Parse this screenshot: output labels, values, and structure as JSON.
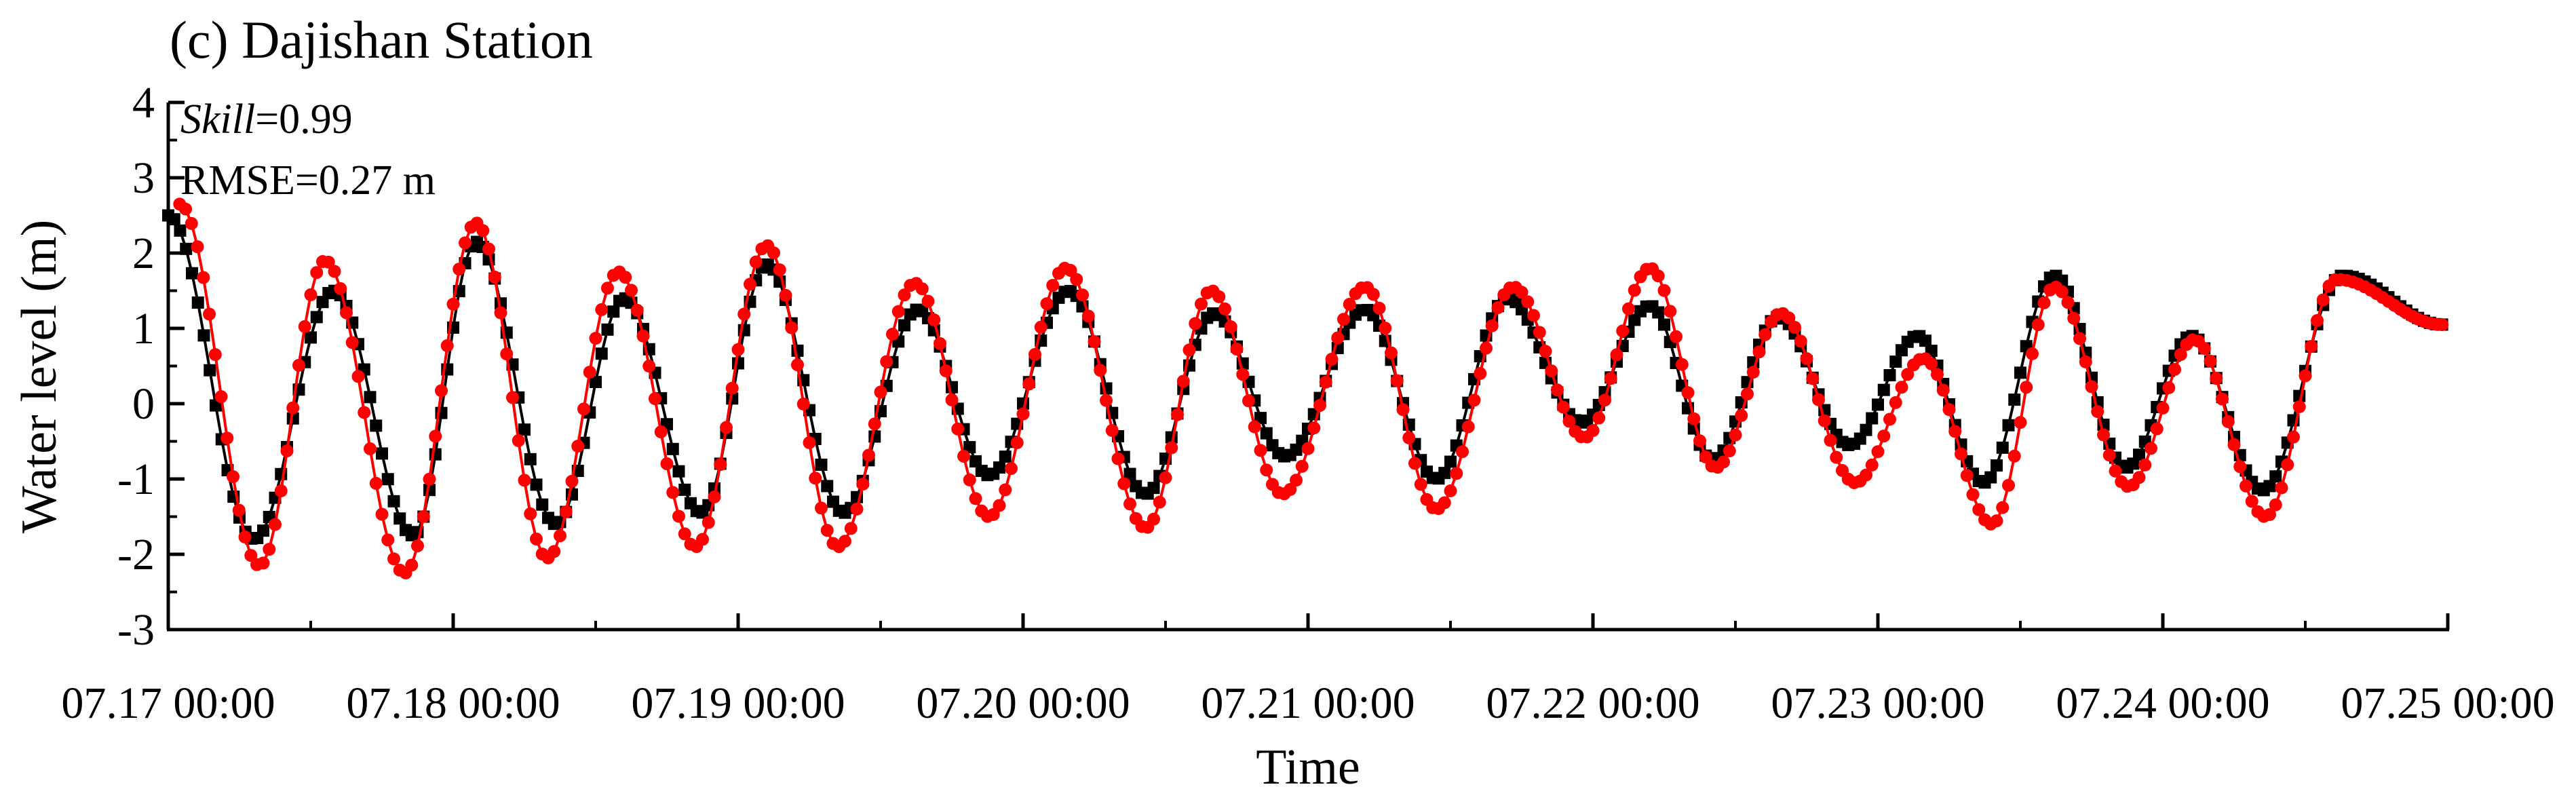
{
  "chart_data": {
    "type": "line",
    "title": "(c) Dajishan Station",
    "xlabel": "Time",
    "ylabel": "Water level (m)",
    "annotations": {
      "skill_label": "Skill",
      "skill_value": "=0.99",
      "rmse": "RMSE=0.27 m"
    },
    "xlim": [
      0,
      8
    ],
    "ylim": [
      -3,
      4
    ],
    "x_tick_labels": [
      "07.17 00:00",
      "07.18 00:00",
      "07.19 00:00",
      "07.20 00:00",
      "07.21 00:00",
      "07.22 00:00",
      "07.23 00:00",
      "07.24 00:00",
      "07.25 00:00"
    ],
    "y_ticks": [
      -3,
      -2,
      -1,
      0,
      1,
      2,
      3,
      4
    ],
    "y_tick_labels": [
      "-3",
      "-2",
      "-1",
      "0",
      "1",
      "2",
      "3",
      "4"
    ],
    "grid": false,
    "legend": "none",
    "series": [
      {
        "color": "#000000",
        "marker": "square",
        "extrema": [
          [
            0.0,
            2.5
          ],
          [
            0.3,
            -1.8
          ],
          [
            0.58,
            1.5
          ],
          [
            0.86,
            -1.75
          ],
          [
            1.08,
            2.15
          ],
          [
            1.36,
            -1.6
          ],
          [
            1.6,
            1.4
          ],
          [
            1.87,
            -1.45
          ],
          [
            2.1,
            1.85
          ],
          [
            2.37,
            -1.45
          ],
          [
            2.63,
            1.25
          ],
          [
            2.88,
            -0.95
          ],
          [
            3.16,
            1.5
          ],
          [
            3.43,
            -1.2
          ],
          [
            3.67,
            1.2
          ],
          [
            3.92,
            -0.7
          ],
          [
            4.2,
            1.25
          ],
          [
            4.45,
            -1.0
          ],
          [
            4.7,
            1.4
          ],
          [
            4.96,
            -0.25
          ],
          [
            5.2,
            1.3
          ],
          [
            5.42,
            -0.75
          ],
          [
            5.65,
            1.15
          ],
          [
            5.9,
            -0.55
          ],
          [
            6.14,
            0.9
          ],
          [
            6.37,
            -1.05
          ],
          [
            6.62,
            1.7
          ],
          [
            6.87,
            -0.85
          ],
          [
            7.1,
            0.9
          ],
          [
            7.35,
            -1.15
          ],
          [
            7.63,
            1.7
          ],
          [
            7.98,
            1.05
          ]
        ]
      },
      {
        "color": "#ff0000",
        "marker": "circle",
        "extrema": [
          [
            0.04,
            2.65
          ],
          [
            0.32,
            -2.15
          ],
          [
            0.55,
            1.9
          ],
          [
            0.83,
            -2.25
          ],
          [
            1.08,
            2.4
          ],
          [
            1.33,
            -2.05
          ],
          [
            1.58,
            1.75
          ],
          [
            1.85,
            -1.9
          ],
          [
            2.1,
            2.1
          ],
          [
            2.35,
            -1.9
          ],
          [
            2.62,
            1.6
          ],
          [
            2.88,
            -1.5
          ],
          [
            3.15,
            1.8
          ],
          [
            3.43,
            -1.65
          ],
          [
            3.66,
            1.5
          ],
          [
            3.91,
            -1.2
          ],
          [
            4.2,
            1.55
          ],
          [
            4.45,
            -1.4
          ],
          [
            4.72,
            1.55
          ],
          [
            4.97,
            -0.45
          ],
          [
            5.2,
            1.8
          ],
          [
            5.43,
            -0.85
          ],
          [
            5.66,
            1.2
          ],
          [
            5.92,
            -1.05
          ],
          [
            6.16,
            0.6
          ],
          [
            6.4,
            -1.6
          ],
          [
            6.62,
            1.55
          ],
          [
            6.88,
            -1.1
          ],
          [
            7.11,
            0.85
          ],
          [
            7.36,
            -1.5
          ],
          [
            7.61,
            1.65
          ],
          [
            7.98,
            1.05
          ]
        ]
      }
    ]
  }
}
